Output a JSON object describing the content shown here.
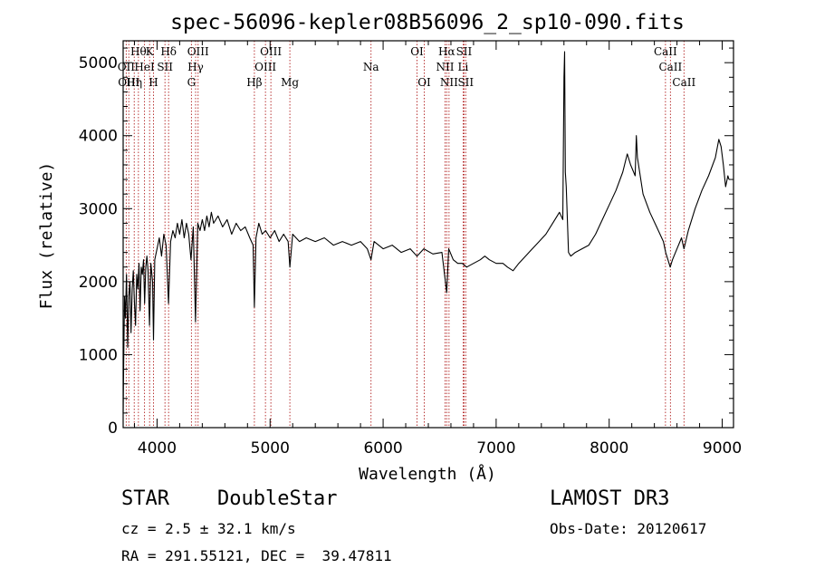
{
  "chart_data": {
    "type": "line",
    "title": "spec-56096-kepler08B56096_2_sp10-090.fits",
    "xlabel": "Wavelength (Å)",
    "ylabel": "Flux (relative)",
    "xlim": [
      3700,
      9100
    ],
    "ylim": [
      0,
      5300
    ],
    "xticks": [
      4000,
      5000,
      6000,
      7000,
      8000,
      9000
    ],
    "yticks": [
      0,
      1000,
      2000,
      3000,
      4000,
      5000
    ],
    "x_minor_step": 200,
    "y_minor_step": 200,
    "series": [
      {
        "name": "flux",
        "points": [
          [
            3700,
            200
          ],
          [
            3705,
            900
          ],
          [
            3712,
            1800
          ],
          [
            3720,
            1500
          ],
          [
            3730,
            2100
          ],
          [
            3740,
            1100
          ],
          [
            3750,
            1800
          ],
          [
            3760,
            2000
          ],
          [
            3770,
            1300
          ],
          [
            3780,
            1900
          ],
          [
            3790,
            2150
          ],
          [
            3800,
            1700
          ],
          [
            3810,
            1400
          ],
          [
            3820,
            2100
          ],
          [
            3830,
            1900
          ],
          [
            3840,
            2250
          ],
          [
            3850,
            1600
          ],
          [
            3860,
            2200
          ],
          [
            3870,
            2100
          ],
          [
            3880,
            2300
          ],
          [
            3890,
            1700
          ],
          [
            3900,
            2200
          ],
          [
            3910,
            2350
          ],
          [
            3920,
            2150
          ],
          [
            3933,
            1400
          ],
          [
            3945,
            2250
          ],
          [
            3960,
            2000
          ],
          [
            3968,
            1200
          ],
          [
            3980,
            2300
          ],
          [
            4000,
            2450
          ],
          [
            4020,
            2600
          ],
          [
            4040,
            2350
          ],
          [
            4060,
            2650
          ],
          [
            4080,
            2500
          ],
          [
            4101,
            1700
          ],
          [
            4120,
            2550
          ],
          [
            4140,
            2700
          ],
          [
            4160,
            2600
          ],
          [
            4180,
            2800
          ],
          [
            4200,
            2650
          ],
          [
            4220,
            2850
          ],
          [
            4240,
            2600
          ],
          [
            4260,
            2800
          ],
          [
            4280,
            2650
          ],
          [
            4300,
            2300
          ],
          [
            4320,
            2750
          ],
          [
            4340,
            1450
          ],
          [
            4360,
            2800
          ],
          [
            4380,
            2700
          ],
          [
            4400,
            2850
          ],
          [
            4420,
            2700
          ],
          [
            4440,
            2900
          ],
          [
            4460,
            2750
          ],
          [
            4480,
            2950
          ],
          [
            4500,
            2800
          ],
          [
            4540,
            2900
          ],
          [
            4580,
            2750
          ],
          [
            4620,
            2850
          ],
          [
            4660,
            2650
          ],
          [
            4700,
            2800
          ],
          [
            4740,
            2700
          ],
          [
            4780,
            2750
          ],
          [
            4820,
            2600
          ],
          [
            4850,
            2500
          ],
          [
            4861,
            1650
          ],
          [
            4875,
            2600
          ],
          [
            4900,
            2800
          ],
          [
            4930,
            2650
          ],
          [
            4960,
            2700
          ],
          [
            5000,
            2600
          ],
          [
            5040,
            2700
          ],
          [
            5080,
            2550
          ],
          [
            5120,
            2650
          ],
          [
            5160,
            2550
          ],
          [
            5175,
            2200
          ],
          [
            5200,
            2650
          ],
          [
            5260,
            2550
          ],
          [
            5320,
            2600
          ],
          [
            5400,
            2550
          ],
          [
            5480,
            2600
          ],
          [
            5560,
            2500
          ],
          [
            5640,
            2550
          ],
          [
            5720,
            2500
          ],
          [
            5800,
            2550
          ],
          [
            5860,
            2450
          ],
          [
            5893,
            2300
          ],
          [
            5920,
            2550
          ],
          [
            6000,
            2450
          ],
          [
            6080,
            2500
          ],
          [
            6160,
            2400
          ],
          [
            6240,
            2450
          ],
          [
            6300,
            2350
          ],
          [
            6360,
            2450
          ],
          [
            6440,
            2380
          ],
          [
            6520,
            2400
          ],
          [
            6563,
            1850
          ],
          [
            6580,
            2450
          ],
          [
            6620,
            2300
          ],
          [
            6660,
            2250
          ],
          [
            6700,
            2250
          ],
          [
            6740,
            2200
          ],
          [
            6800,
            2250
          ],
          [
            6860,
            2300
          ],
          [
            6900,
            2350
          ],
          [
            6940,
            2300
          ],
          [
            7000,
            2250
          ],
          [
            7060,
            2250
          ],
          [
            7100,
            2200
          ],
          [
            7150,
            2150
          ],
          [
            7200,
            2250
          ],
          [
            7260,
            2350
          ],
          [
            7320,
            2450
          ],
          [
            7380,
            2550
          ],
          [
            7440,
            2650
          ],
          [
            7500,
            2800
          ],
          [
            7560,
            2950
          ],
          [
            7590,
            2850
          ],
          [
            7600,
            4800
          ],
          [
            7606,
            5150
          ],
          [
            7612,
            3500
          ],
          [
            7620,
            3300
          ],
          [
            7640,
            2400
          ],
          [
            7660,
            2350
          ],
          [
            7700,
            2400
          ],
          [
            7760,
            2450
          ],
          [
            7820,
            2500
          ],
          [
            7880,
            2650
          ],
          [
            7940,
            2850
          ],
          [
            8000,
            3050
          ],
          [
            8060,
            3250
          ],
          [
            8120,
            3500
          ],
          [
            8160,
            3750
          ],
          [
            8190,
            3600
          ],
          [
            8230,
            3450
          ],
          [
            8240,
            4000
          ],
          [
            8250,
            3700
          ],
          [
            8300,
            3200
          ],
          [
            8360,
            2950
          ],
          [
            8420,
            2750
          ],
          [
            8480,
            2550
          ],
          [
            8500,
            2400
          ],
          [
            8520,
            2300
          ],
          [
            8540,
            2200
          ],
          [
            8560,
            2300
          ],
          [
            8600,
            2450
          ],
          [
            8640,
            2600
          ],
          [
            8662,
            2450
          ],
          [
            8700,
            2700
          ],
          [
            8760,
            3000
          ],
          [
            8820,
            3250
          ],
          [
            8880,
            3450
          ],
          [
            8940,
            3700
          ],
          [
            8970,
            3950
          ],
          [
            8990,
            3850
          ],
          [
            9010,
            3600
          ],
          [
            9030,
            3300
          ],
          [
            9050,
            3450
          ],
          [
            9060,
            3400
          ]
        ]
      }
    ],
    "lines": [
      {
        "wavelength": 3727,
        "row": 2,
        "label": "OII"
      },
      {
        "wavelength": 3750,
        "row": 3,
        "label": "OIII"
      },
      {
        "wavelength": 3798,
        "row": 3,
        "label": "Hη"
      },
      {
        "wavelength": 3835,
        "row": 1,
        "label": "Hθ"
      },
      {
        "wavelength": 3889,
        "row": 2,
        "label": "HeI"
      },
      {
        "wavelength": 3934,
        "row": 1,
        "label": "K"
      },
      {
        "wavelength": 3968,
        "row": 3,
        "label": "H"
      },
      {
        "wavelength": 4070,
        "row": 2,
        "label": "SII"
      },
      {
        "wavelength": 4102,
        "row": 1,
        "label": "Hδ"
      },
      {
        "wavelength": 4304,
        "row": 3,
        "label": "G"
      },
      {
        "wavelength": 4341,
        "row": 2,
        "label": "Hγ"
      },
      {
        "wavelength": 4363,
        "row": 1,
        "label": "OIII"
      },
      {
        "wavelength": 4861,
        "row": 3,
        "label": "Hβ"
      },
      {
        "wavelength": 4959,
        "row": 2,
        "label": "OIII"
      },
      {
        "wavelength": 5007,
        "row": 1,
        "label": "OIII"
      },
      {
        "wavelength": 5175,
        "row": 3,
        "label": "Mg"
      },
      {
        "wavelength": 5893,
        "row": 2,
        "label": "Na"
      },
      {
        "wavelength": 6300,
        "row": 1,
        "label": "OI"
      },
      {
        "wavelength": 6364,
        "row": 3,
        "label": "OI"
      },
      {
        "wavelength": 6548,
        "row": 2,
        "label": "NII"
      },
      {
        "wavelength": 6563,
        "row": 1,
        "label": "Hα"
      },
      {
        "wavelength": 6583,
        "row": 3,
        "label": "NII"
      },
      {
        "wavelength": 6708,
        "row": 2,
        "label": "Li"
      },
      {
        "wavelength": 6716,
        "row": 1,
        "label": "SII"
      },
      {
        "wavelength": 6731,
        "row": 3,
        "label": "SII"
      },
      {
        "wavelength": 8498,
        "row": 1,
        "label": "CaII"
      },
      {
        "wavelength": 8542,
        "row": 2,
        "label": "CaII"
      },
      {
        "wavelength": 8662,
        "row": 3,
        "label": "CaII"
      }
    ]
  },
  "info": {
    "object_class": "STAR",
    "subclass": "DoubleStar",
    "survey": "LAMOST DR3",
    "redshift": "cz = 2.5 ± 32.1 km/s",
    "obs_date": "Obs-Date: 20120617",
    "coords": "RA = 291.55121, DEC =  39.47811"
  }
}
